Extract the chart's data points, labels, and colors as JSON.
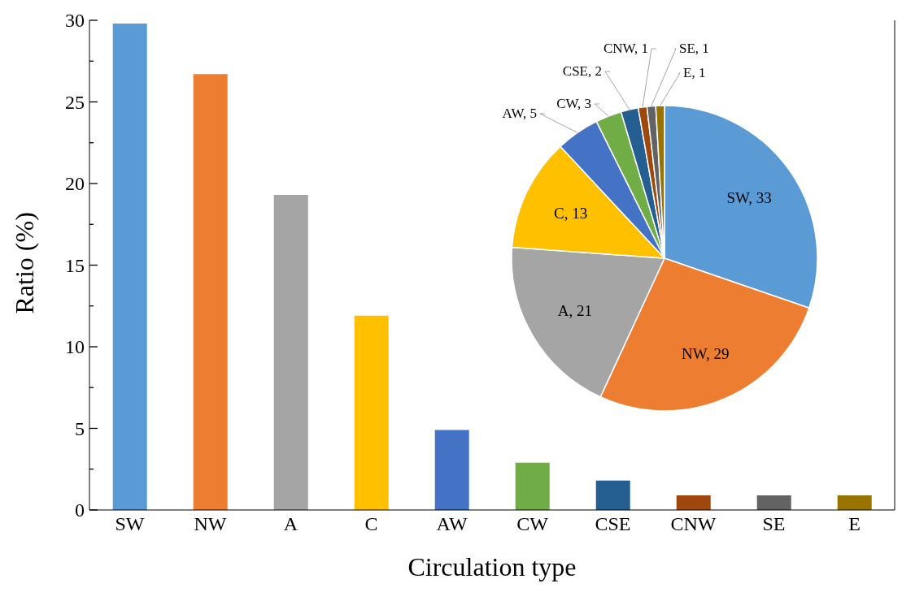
{
  "chart_data": [
    {
      "type": "bar",
      "xlabel": "Circulation type",
      "ylabel": "Ratio (%)",
      "categories": [
        "SW",
        "NW",
        "A",
        "C",
        "AW",
        "CW",
        "CSE",
        "CNW",
        "SE",
        "E"
      ],
      "values": [
        29.8,
        26.7,
        19.3,
        11.9,
        4.9,
        2.9,
        1.8,
        0.9,
        0.9,
        0.9
      ],
      "colors": [
        "#5b9bd5",
        "#ed7d31",
        "#a5a5a5",
        "#ffc000",
        "#4472c4",
        "#70ad47",
        "#255e91",
        "#9e480e",
        "#636363",
        "#997300"
      ],
      "ylim": [
        0,
        30
      ],
      "yticks": [
        0,
        {
          "value": 2.5,
          "label": null
        },
        5,
        {
          "value": 7.5,
          "label": null
        },
        10,
        {
          "value": 12.5,
          "label": null
        },
        15,
        {
          "value": 17.5,
          "label": null
        },
        20,
        {
          "value": 22.5,
          "label": null
        },
        25,
        {
          "value": 27.5,
          "label": null
        },
        30
      ],
      "grid": false,
      "legend": false
    },
    {
      "type": "pie",
      "categories": [
        "SW",
        "NW",
        "A",
        "C",
        "AW",
        "CW",
        "CSE",
        "CNW",
        "SE",
        "E"
      ],
      "values": [
        33,
        29,
        21,
        13,
        5,
        3,
        2,
        1,
        1,
        1
      ],
      "colors": [
        "#5b9bd5",
        "#ed7d31",
        "#a5a5a5",
        "#ffc000",
        "#4472c4",
        "#70ad47",
        "#255e91",
        "#9e480e",
        "#636363",
        "#997300"
      ],
      "value_labels": [
        ", 33",
        ", 29",
        ", 21",
        ", 13",
        ", 5",
        ", 3",
        ", 2",
        ", 1",
        ", 1",
        ", 1"
      ],
      "legend": false
    }
  ]
}
